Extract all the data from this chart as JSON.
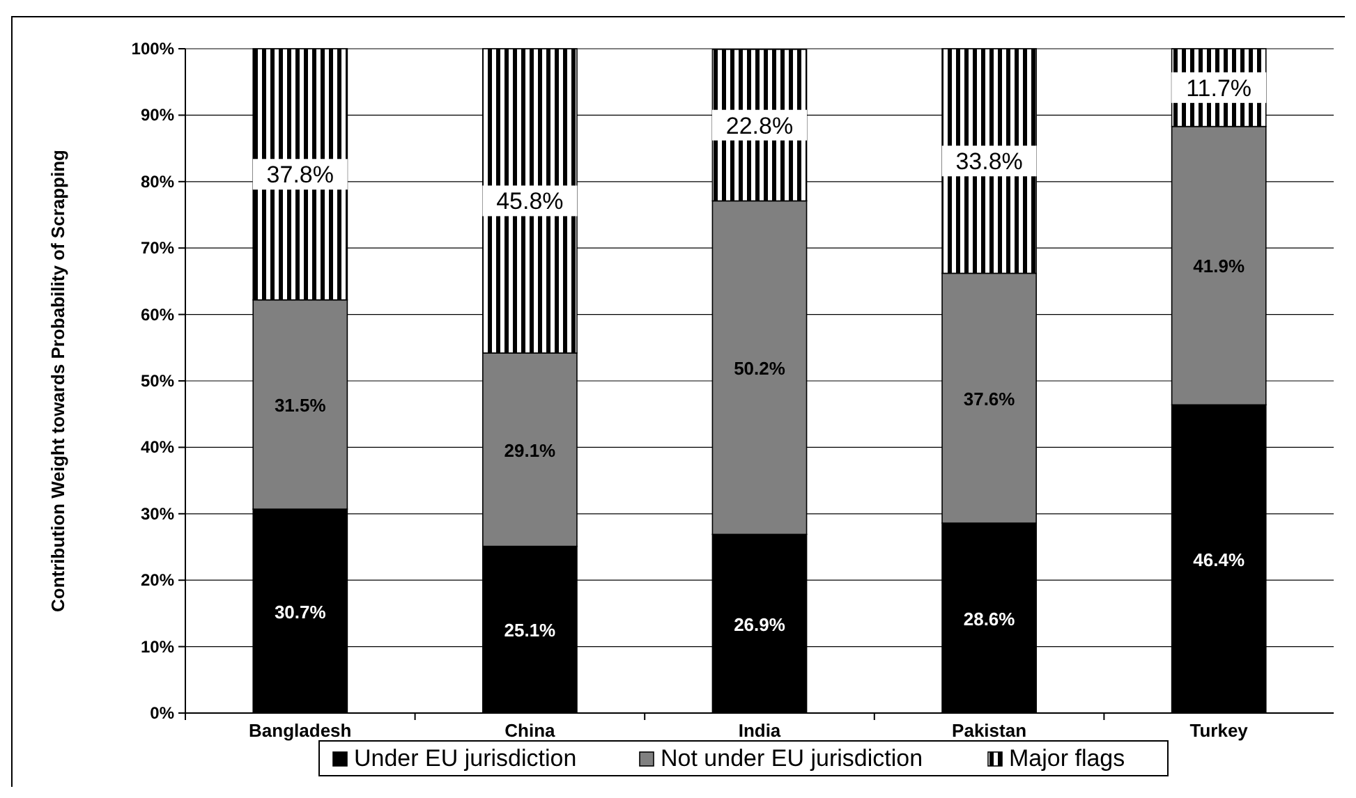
{
  "chart_data": {
    "type": "bar",
    "stacked": true,
    "ylabel": "Contribution Weight towards Probability of Scrapping",
    "categories": [
      "Bangladesh",
      "China",
      "India",
      "Pakistan",
      "Turkey"
    ],
    "series": [
      {
        "name": "Under EU jurisdiction",
        "color": "#000000",
        "values": [
          30.7,
          25.1,
          26.9,
          28.6,
          46.4
        ],
        "value_labels": [
          "30.7%",
          "25.1%",
          "26.9%",
          "28.6%",
          "46.4%"
        ]
      },
      {
        "name": "Not under EU jurisdiction",
        "color": "#808080",
        "values": [
          31.5,
          29.1,
          50.2,
          37.6,
          41.9
        ],
        "value_labels": [
          "31.5%",
          "29.1%",
          "50.2%",
          "37.6%",
          "41.9%"
        ]
      },
      {
        "name": "Major flags",
        "color": "#000000",
        "values": [
          37.8,
          45.8,
          22.8,
          33.8,
          11.7
        ],
        "value_labels": [
          "37.8%",
          "45.8%",
          "22.8%",
          "33.8%",
          "11.7%"
        ]
      }
    ],
    "ylim": [
      0,
      100
    ],
    "yticks": [
      {
        "value": 0,
        "label": "0%"
      },
      {
        "value": 10,
        "label": "10%"
      },
      {
        "value": 20,
        "label": "20%"
      },
      {
        "value": 30,
        "label": "30%"
      },
      {
        "value": 40,
        "label": "40%"
      },
      {
        "value": 50,
        "label": "50%"
      },
      {
        "value": 60,
        "label": "60%"
      },
      {
        "value": 70,
        "label": "70%"
      },
      {
        "value": 80,
        "label": "80%"
      },
      {
        "value": 90,
        "label": "90%"
      },
      {
        "value": 100,
        "label": "100%"
      }
    ],
    "grid": "y",
    "legend": "bottom"
  }
}
